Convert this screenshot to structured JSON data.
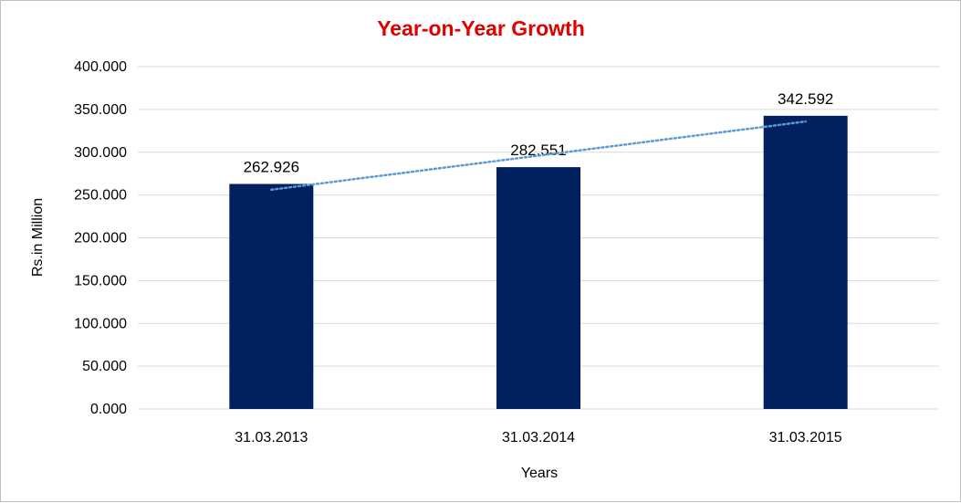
{
  "chart_data": {
    "type": "bar",
    "title": "Year-on-Year Growth",
    "xlabel": "Years",
    "ylabel": "Rs.in Million",
    "categories": [
      "31.03.2013",
      "31.03.2014",
      "31.03.2015"
    ],
    "values": [
      262.926,
      282.551,
      342.592
    ],
    "value_labels": [
      "262.926",
      "282.551",
      "342.592"
    ],
    "ylim": [
      0,
      400
    ],
    "y_ticks": [
      "0.000",
      "50.000",
      "100.000",
      "150.000",
      "200.000",
      "250.000",
      "300.000",
      "350.000",
      "400.000"
    ],
    "grid": true,
    "legend": "none",
    "trendline": {
      "type": "linear",
      "style": "dotted"
    },
    "colors": {
      "bar": "#002060",
      "trendline": "#5b9bd5",
      "title": "#e00000",
      "grid": "#d9d9d9"
    }
  }
}
